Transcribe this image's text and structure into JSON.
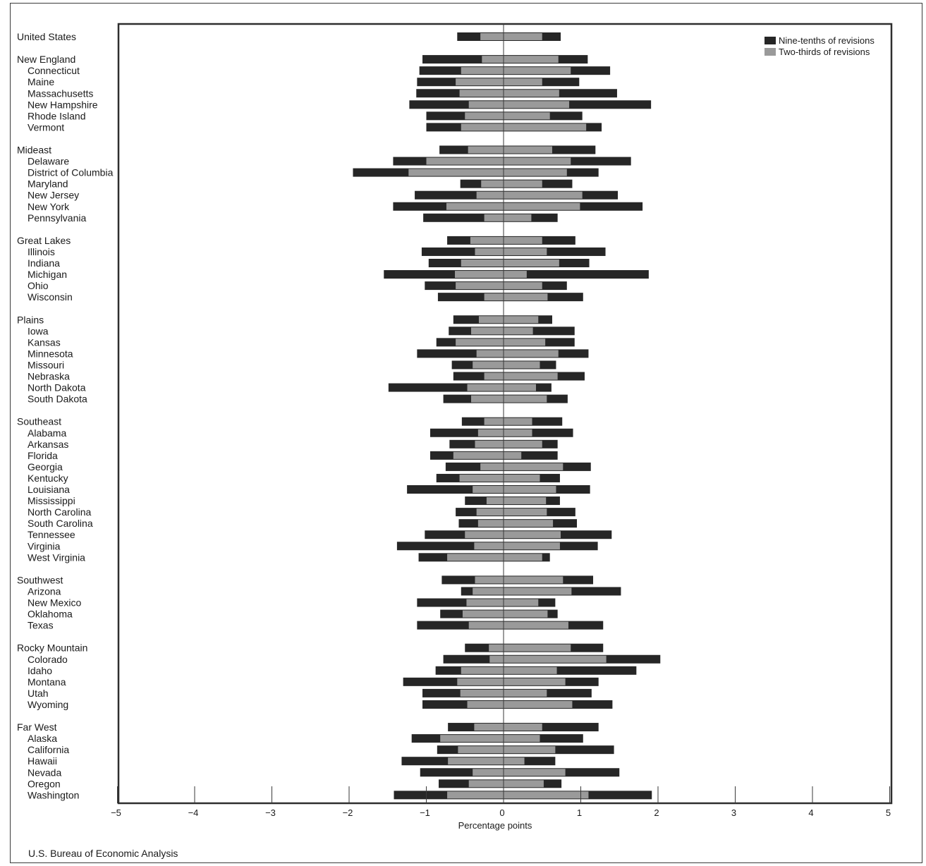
{
  "source": "U.S. Bureau of Economic Analysis",
  "colors": {
    "nine_tenths": "#262626",
    "two_thirds": "#9a9a9a",
    "frame": "#2e2e2e"
  },
  "chart_data": {
    "type": "bar",
    "orientation": "horizontal",
    "title": "",
    "xlabel": "Percentage points",
    "ylabel": "",
    "xlim": [
      -5,
      5
    ],
    "xticks": [
      -5,
      -4,
      -3,
      -2,
      -1,
      0,
      1,
      2,
      3,
      4,
      5
    ],
    "x_tick_labels": [
      "−5",
      "−4",
      "−3",
      "−2",
      "−1",
      "0",
      "1",
      "2",
      "3",
      "4",
      "5"
    ],
    "grid": false,
    "legend_position": "top-right",
    "series": [
      {
        "name": "Nine-tenths of revisions",
        "key": "nine",
        "color": "#262626"
      },
      {
        "name": "Two-thirds of revisions",
        "key": "two",
        "color": "#9a9a9a"
      }
    ],
    "groups": [
      {
        "rows": [
          {
            "name": "United States",
            "region": true,
            "nine": [
              -0.6,
              0.74
            ],
            "two": [
              -0.3,
              0.5
            ]
          }
        ]
      },
      {
        "rows": [
          {
            "name": "New England",
            "region": true,
            "nine": [
              -1.05,
              1.09
            ],
            "two": [
              -0.28,
              0.71
            ]
          },
          {
            "name": "Connecticut",
            "region": false,
            "nine": [
              -1.09,
              1.38
            ],
            "two": [
              -0.55,
              0.87
            ]
          },
          {
            "name": "Maine",
            "region": false,
            "nine": [
              -1.12,
              0.98
            ],
            "two": [
              -0.62,
              0.5
            ]
          },
          {
            "name": "Massachusetts",
            "region": false,
            "nine": [
              -1.13,
              1.47
            ],
            "two": [
              -0.57,
              0.72
            ]
          },
          {
            "name": "New Hampshire",
            "region": false,
            "nine": [
              -1.22,
              1.91
            ],
            "two": [
              -0.45,
              0.85
            ]
          },
          {
            "name": "Rhode Island",
            "region": false,
            "nine": [
              -1.0,
              1.02
            ],
            "two": [
              -0.5,
              0.6
            ]
          },
          {
            "name": "Vermont",
            "region": false,
            "nine": [
              -1.0,
              1.27
            ],
            "two": [
              -0.55,
              1.07
            ]
          }
        ]
      },
      {
        "rows": [
          {
            "name": "Mideast",
            "region": true,
            "nine": [
              -0.83,
              1.19
            ],
            "two": [
              -0.46,
              0.63
            ]
          },
          {
            "name": "Delaware",
            "region": false,
            "nine": [
              -1.43,
              1.65
            ],
            "two": [
              -1.0,
              0.87
            ]
          },
          {
            "name": "District of Columbia",
            "region": false,
            "nine": [
              -1.95,
              1.23
            ],
            "two": [
              -1.23,
              0.82
            ]
          },
          {
            "name": "Maryland",
            "region": false,
            "nine": [
              -0.56,
              0.89
            ],
            "two": [
              -0.29,
              0.5
            ]
          },
          {
            "name": "New Jersey",
            "region": false,
            "nine": [
              -1.15,
              1.48
            ],
            "two": [
              -0.35,
              1.02
            ]
          },
          {
            "name": "New York",
            "region": false,
            "nine": [
              -1.43,
              1.8
            ],
            "two": [
              -0.74,
              0.99
            ]
          },
          {
            "name": "Pennsylvania",
            "region": false,
            "nine": [
              -1.04,
              0.7
            ],
            "two": [
              -0.25,
              0.36
            ]
          }
        ]
      },
      {
        "rows": [
          {
            "name": "Great Lakes",
            "region": true,
            "nine": [
              -0.73,
              0.93
            ],
            "two": [
              -0.43,
              0.5
            ]
          },
          {
            "name": "Illinois",
            "region": false,
            "nine": [
              -1.06,
              1.32
            ],
            "two": [
              -0.37,
              0.56
            ]
          },
          {
            "name": "Indiana",
            "region": false,
            "nine": [
              -0.97,
              1.11
            ],
            "two": [
              -0.55,
              0.72
            ]
          },
          {
            "name": "Michigan",
            "region": false,
            "nine": [
              -1.55,
              1.88
            ],
            "two": [
              -0.63,
              0.3
            ]
          },
          {
            "name": "Ohio",
            "region": false,
            "nine": [
              -1.02,
              0.82
            ],
            "two": [
              -0.62,
              0.5
            ]
          },
          {
            "name": "Wisconsin",
            "region": false,
            "nine": [
              -0.85,
              1.03
            ],
            "two": [
              -0.25,
              0.57
            ]
          }
        ]
      },
      {
        "rows": [
          {
            "name": "Plains",
            "region": true,
            "nine": [
              -0.65,
              0.63
            ],
            "two": [
              -0.32,
              0.45
            ]
          },
          {
            "name": "Iowa",
            "region": false,
            "nine": [
              -0.71,
              0.92
            ],
            "two": [
              -0.42,
              0.38
            ]
          },
          {
            "name": "Kansas",
            "region": false,
            "nine": [
              -0.87,
              0.92
            ],
            "two": [
              -0.62,
              0.54
            ]
          },
          {
            "name": "Minnesota",
            "region": false,
            "nine": [
              -1.12,
              1.1
            ],
            "two": [
              -0.35,
              0.71
            ]
          },
          {
            "name": "Missouri",
            "region": false,
            "nine": [
              -0.67,
              0.68
            ],
            "two": [
              -0.4,
              0.47
            ]
          },
          {
            "name": "Nebraska",
            "region": false,
            "nine": [
              -0.65,
              1.05
            ],
            "two": [
              -0.25,
              0.7
            ]
          },
          {
            "name": "North Dakota",
            "region": false,
            "nine": [
              -1.49,
              0.62
            ],
            "two": [
              -0.47,
              0.42
            ]
          },
          {
            "name": "South Dakota",
            "region": false,
            "nine": [
              -0.78,
              0.83
            ],
            "two": [
              -0.42,
              0.56
            ]
          }
        ]
      },
      {
        "rows": [
          {
            "name": "Southeast",
            "region": true,
            "nine": [
              -0.54,
              0.76
            ],
            "two": [
              -0.25,
              0.37
            ]
          },
          {
            "name": "Alabama",
            "region": false,
            "nine": [
              -0.95,
              0.9
            ],
            "two": [
              -0.33,
              0.37
            ]
          },
          {
            "name": "Arkansas",
            "region": false,
            "nine": [
              -0.7,
              0.7
            ],
            "two": [
              -0.37,
              0.5
            ]
          },
          {
            "name": "Florida",
            "region": false,
            "nine": [
              -0.95,
              0.7
            ],
            "two": [
              -0.65,
              0.23
            ]
          },
          {
            "name": "Georgia",
            "region": false,
            "nine": [
              -0.75,
              1.13
            ],
            "two": [
              -0.3,
              0.77
            ]
          },
          {
            "name": "Kentucky",
            "region": false,
            "nine": [
              -0.87,
              0.73
            ],
            "two": [
              -0.57,
              0.47
            ]
          },
          {
            "name": "Louisiana",
            "region": false,
            "nine": [
              -1.25,
              1.12
            ],
            "two": [
              -0.4,
              0.68
            ]
          },
          {
            "name": "Mississippi",
            "region": false,
            "nine": [
              -0.5,
              0.73
            ],
            "two": [
              -0.22,
              0.55
            ]
          },
          {
            "name": "North Carolina",
            "region": false,
            "nine": [
              -0.62,
              0.93
            ],
            "two": [
              -0.35,
              0.56
            ]
          },
          {
            "name": "South Carolina",
            "region": false,
            "nine": [
              -0.58,
              0.95
            ],
            "two": [
              -0.33,
              0.64
            ]
          },
          {
            "name": "Tennessee",
            "region": false,
            "nine": [
              -1.02,
              1.4
            ],
            "two": [
              -0.5,
              0.74
            ]
          },
          {
            "name": "Virginia",
            "region": false,
            "nine": [
              -1.38,
              1.22
            ],
            "two": [
              -0.38,
              0.73
            ]
          },
          {
            "name": "West Virginia",
            "region": false,
            "nine": [
              -1.1,
              0.6
            ],
            "two": [
              -0.73,
              0.5
            ]
          }
        ]
      },
      {
        "rows": [
          {
            "name": "Southwest",
            "region": true,
            "nine": [
              -0.8,
              1.16
            ],
            "two": [
              -0.37,
              0.77
            ]
          },
          {
            "name": "Arizona",
            "region": false,
            "nine": [
              -0.55,
              1.52
            ],
            "two": [
              -0.4,
              0.88
            ]
          },
          {
            "name": "New Mexico",
            "region": false,
            "nine": [
              -1.12,
              0.67
            ],
            "two": [
              -0.48,
              0.45
            ]
          },
          {
            "name": "Oklahoma",
            "region": false,
            "nine": [
              -0.82,
              0.7
            ],
            "two": [
              -0.53,
              0.57
            ]
          },
          {
            "name": "Texas",
            "region": false,
            "nine": [
              -1.12,
              1.29
            ],
            "two": [
              -0.45,
              0.84
            ]
          }
        ]
      },
      {
        "rows": [
          {
            "name": "Rocky Mountain",
            "region": true,
            "nine": [
              -0.5,
              1.29
            ],
            "two": [
              -0.19,
              0.87
            ]
          },
          {
            "name": "Colorado",
            "region": false,
            "nine": [
              -0.78,
              2.03
            ],
            "two": [
              -0.18,
              1.33
            ]
          },
          {
            "name": "Idaho",
            "region": false,
            "nine": [
              -0.88,
              1.72
            ],
            "two": [
              -0.55,
              0.69
            ]
          },
          {
            "name": "Montana",
            "region": false,
            "nine": [
              -1.3,
              1.23
            ],
            "two": [
              -0.6,
              0.8
            ]
          },
          {
            "name": "Utah",
            "region": false,
            "nine": [
              -1.05,
              1.14
            ],
            "two": [
              -0.56,
              0.56
            ]
          },
          {
            "name": "Wyoming",
            "region": false,
            "nine": [
              -1.05,
              1.41
            ],
            "two": [
              -0.47,
              0.89
            ]
          }
        ]
      },
      {
        "rows": [
          {
            "name": "Far West",
            "region": true,
            "nine": [
              -0.72,
              1.23
            ],
            "two": [
              -0.38,
              0.5
            ]
          },
          {
            "name": "Alaska",
            "region": false,
            "nine": [
              -1.19,
              1.03
            ],
            "two": [
              -0.82,
              0.47
            ]
          },
          {
            "name": "California",
            "region": false,
            "nine": [
              -0.86,
              1.43
            ],
            "two": [
              -0.59,
              0.67
            ]
          },
          {
            "name": "Hawaii",
            "region": false,
            "nine": [
              -1.32,
              0.67
            ],
            "two": [
              -0.72,
              0.27
            ]
          },
          {
            "name": "Nevada",
            "region": false,
            "nine": [
              -1.08,
              1.5
            ],
            "two": [
              -0.4,
              0.8
            ]
          },
          {
            "name": "Oregon",
            "region": false,
            "nine": [
              -0.84,
              0.75
            ],
            "two": [
              -0.45,
              0.52
            ]
          },
          {
            "name": "Washington",
            "region": false,
            "nine": [
              -1.42,
              1.92
            ],
            "two": [
              -0.73,
              1.1
            ]
          }
        ]
      }
    ]
  }
}
